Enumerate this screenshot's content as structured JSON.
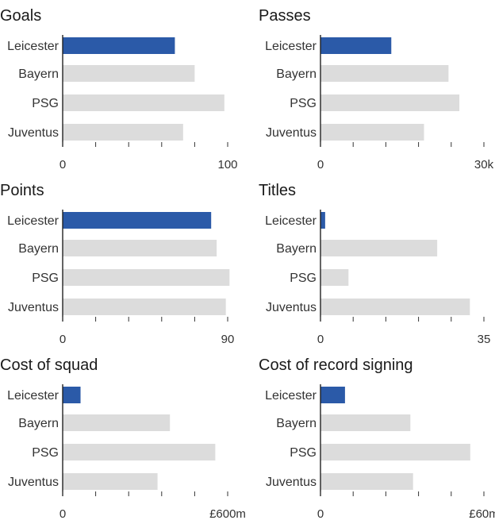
{
  "chart_data": [
    {
      "type": "bar",
      "orientation": "horizontal",
      "title": "Goals",
      "categories": [
        "Leicester",
        "Bayern",
        "PSG",
        "Juventus"
      ],
      "values": [
        68,
        80,
        98,
        73
      ],
      "highlight": "Leicester",
      "xlim": [
        0,
        100
      ],
      "tick_labels": [
        "0",
        "100"
      ],
      "grid": false
    },
    {
      "type": "bar",
      "orientation": "horizontal",
      "title": "Passes",
      "categories": [
        "Leicester",
        "Bayern",
        "PSG",
        "Juventus"
      ],
      "values": [
        13000,
        23500,
        25500,
        19000
      ],
      "highlight": "Leicester",
      "xlim": [
        0,
        30000
      ],
      "tick_labels": [
        "0",
        "30k"
      ],
      "grid": false
    },
    {
      "type": "bar",
      "orientation": "horizontal",
      "title": "Points",
      "categories": [
        "Leicester",
        "Bayern",
        "PSG",
        "Juventus"
      ],
      "values": [
        81,
        84,
        91,
        89
      ],
      "highlight": "Leicester",
      "xlim": [
        0,
        90
      ],
      "tick_labels": [
        "0",
        "90"
      ],
      "grid": false
    },
    {
      "type": "bar",
      "orientation": "horizontal",
      "title": "Titles",
      "categories": [
        "Leicester",
        "Bayern",
        "PSG",
        "Juventus"
      ],
      "values": [
        1,
        25,
        6,
        32
      ],
      "highlight": "Leicester",
      "xlim": [
        0,
        35
      ],
      "tick_labels": [
        "0",
        "35"
      ],
      "grid": false
    },
    {
      "type": "bar",
      "orientation": "horizontal",
      "title": "Cost of squad",
      "categories": [
        "Leicester",
        "Bayern",
        "PSG",
        "Juventus"
      ],
      "values": [
        65,
        390,
        555,
        345
      ],
      "highlight": "Leicester",
      "xlim": [
        0,
        600
      ],
      "tick_labels": [
        "0",
        "£600m"
      ],
      "grid": false
    },
    {
      "type": "bar",
      "orientation": "horizontal",
      "title": "Cost of record signing",
      "categories": [
        "Leicester",
        "Bayern",
        "PSG",
        "Juventus"
      ],
      "values": [
        9,
        33,
        55,
        34
      ],
      "highlight": "Leicester",
      "xlim": [
        0,
        60
      ],
      "tick_labels": [
        "0",
        "£60m"
      ],
      "grid": false
    }
  ],
  "colors": {
    "highlight": "#2b5aa8",
    "bar": "#dcdcdc",
    "axis": "#222222",
    "text": "#222222"
  }
}
